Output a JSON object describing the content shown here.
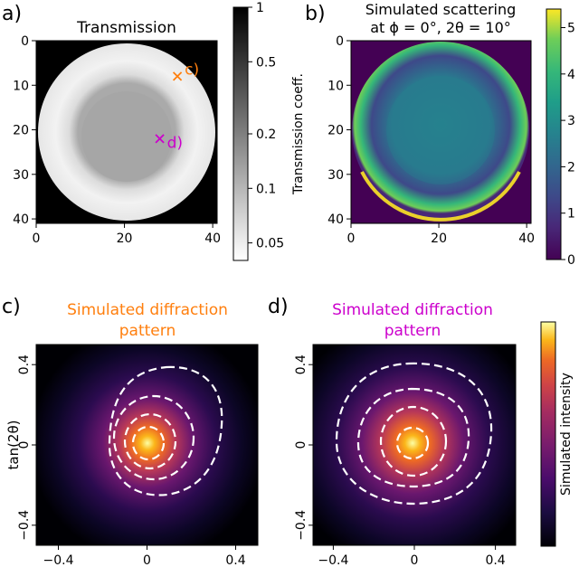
{
  "panels": {
    "a": {
      "letter": "a)",
      "title": "Transmission",
      "colorbar_label": "Transmission coeff.",
      "colorbar_ticks": [
        "1",
        "0.5",
        "0.2",
        "0.1",
        "0.05"
      ],
      "markers": [
        {
          "label": "c)",
          "x": 32,
          "y": 8,
          "color": "#ff7f0e"
        },
        {
          "label": "d)",
          "x": 28,
          "y": 22,
          "color": "#cc00cc"
        }
      ]
    },
    "b": {
      "letter": "b)",
      "title_line1": "Simulated scattering",
      "title_line2": "at ϕ = 0°, 2θ = 10°",
      "colorbar_ticks": [
        "0",
        "1",
        "2",
        "3",
        "4",
        "5"
      ]
    },
    "c": {
      "letter": "c)",
      "title_line1": "Simulated diffraction",
      "title_line2": "pattern",
      "title_color": "#ff7f0e",
      "ylabel": "tan(2θ)"
    },
    "d": {
      "letter": "d)",
      "title_line1": "Simulated diffraction",
      "title_line2": "pattern",
      "title_color": "#cc00cc",
      "colorbar_label": "Simulated intensity"
    }
  },
  "chart_data": [
    {
      "type": "heatmap",
      "panel": "a",
      "colormap": "gray (log scale)",
      "xlim": [
        0,
        41
      ],
      "ylim": [
        41,
        0
      ],
      "xticks": [
        0,
        20,
        40
      ],
      "yticks": [
        0,
        10,
        20,
        30,
        40
      ],
      "clim": [
        0.04,
        1
      ],
      "description_values": {
        "outside_disk": 1,
        "outer_ring": 0.06,
        "inner_disk": 0.2
      }
    },
    {
      "type": "heatmap",
      "panel": "b",
      "colormap": "viridis",
      "xlim": [
        0,
        41
      ],
      "ylim": [
        41,
        0
      ],
      "xticks": [
        0,
        20,
        40
      ],
      "yticks": [
        0,
        10,
        20,
        30,
        40
      ],
      "clim": [
        0,
        5.4
      ],
      "description_values": {
        "outside_disk": 0,
        "edge_ring_bottom": 5.3,
        "center": 2.2
      }
    },
    {
      "type": "heatmap",
      "panel": "c",
      "colormap": "inferno",
      "xlim": [
        -0.5,
        0.5
      ],
      "ylim": [
        -0.5,
        0.5
      ],
      "xticks": [
        -0.4,
        0,
        0.4
      ],
      "yticks": [
        -0.4,
        0,
        0.4
      ],
      "peak": [
        0,
        0
      ],
      "contour_style": "white dashed"
    },
    {
      "type": "heatmap",
      "panel": "d",
      "colormap": "inferno",
      "xlim": [
        -0.5,
        0.5
      ],
      "ylim": [
        -0.5,
        0.5
      ],
      "xticks": [
        -0.4,
        0,
        0.4
      ],
      "yticks": [
        -0.4,
        0,
        0.4
      ],
      "peak": [
        0,
        0
      ],
      "contour_style": "white dashed"
    }
  ]
}
